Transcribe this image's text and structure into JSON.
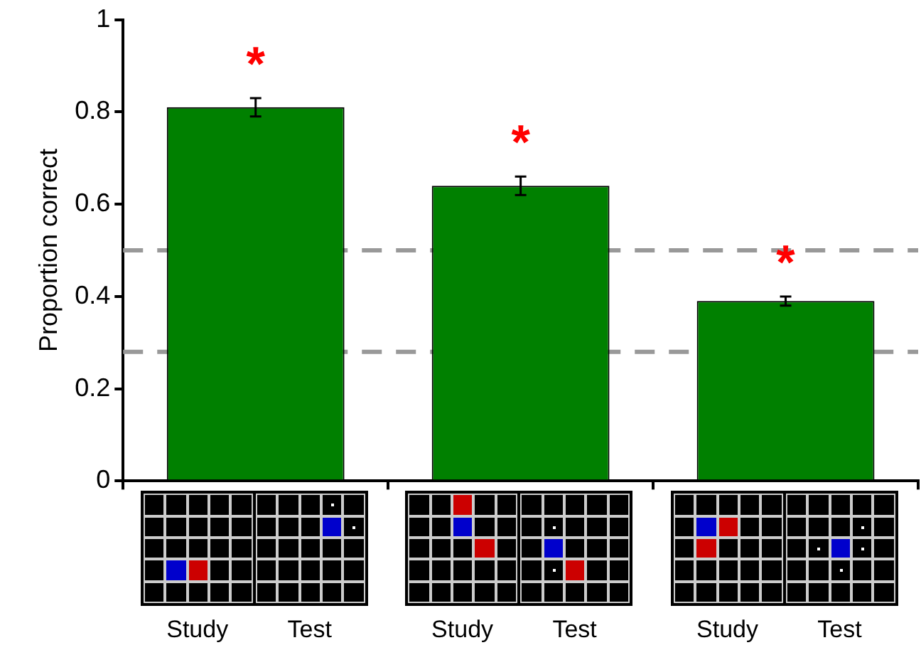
{
  "chart_data": {
    "type": "bar",
    "ylabel": "Proportion correct",
    "categories": [
      null,
      null,
      null
    ],
    "values": [
      0.81,
      0.64,
      0.39
    ],
    "errors": [
      0.02,
      0.02,
      0.01
    ],
    "color": "#008000",
    "ylim": [
      0,
      1
    ],
    "yticks": [
      0,
      0.2,
      0.4,
      0.6,
      0.8,
      1
    ],
    "grid": false,
    "legend": false,
    "ref_lines": [
      {
        "axis": "y",
        "value": 0.5,
        "color": "#999999",
        "line_style": "dashed"
      },
      {
        "axis": "y",
        "value": 0.28,
        "color": "#999999",
        "line_style": "dashed"
      }
    ],
    "annotations": [
      "*",
      "*",
      "*",
      "Study",
      "Test",
      "Study",
      "Test",
      "Study",
      "Test"
    ]
  }
}
